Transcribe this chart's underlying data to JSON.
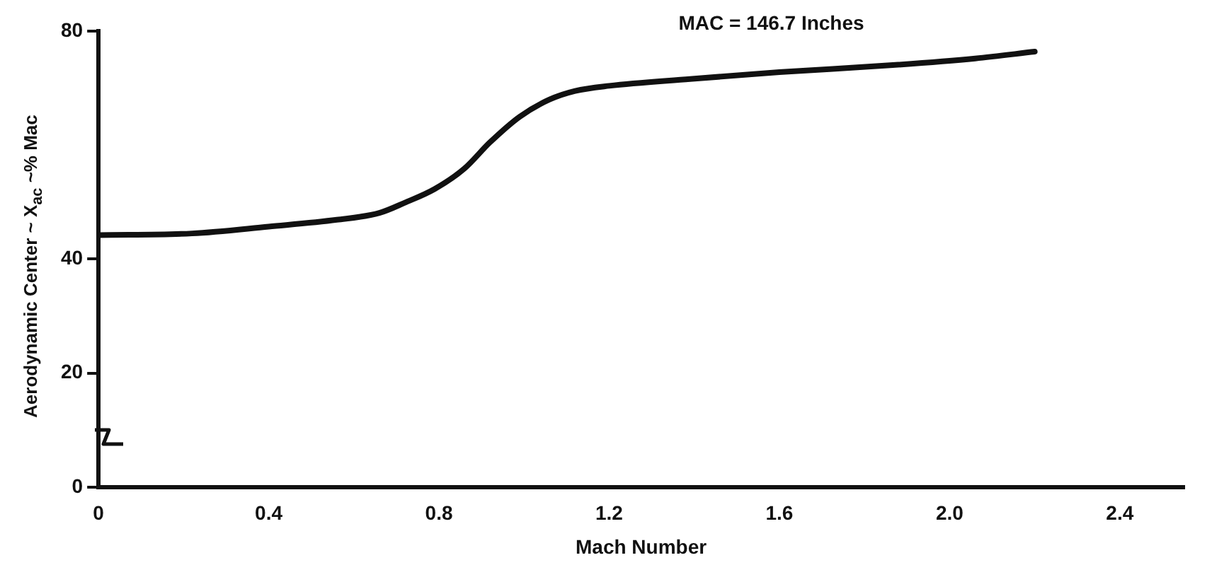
{
  "chart_data": {
    "type": "line",
    "xlabel": "Mach Number",
    "ylabel": "Aerodynamic Center ~ X$_{ac}$ ~% Mac",
    "annotations": [
      "MAC = 146.7 Inches"
    ],
    "xlim": [
      0,
      2.55
    ],
    "xticks": [
      0,
      0.4,
      0.8,
      1.2,
      1.6,
      {
        "value": 2,
        "label": "2.0"
      },
      2.4
    ],
    "ylim": [
      0,
      80
    ],
    "yticks": [
      0,
      20,
      40,
      80
    ],
    "grid": false,
    "marker": "none",
    "line_style": "solid",
    "series": [
      {
        "color": "#111111",
        "x": [
          0,
          0.22,
          0.4,
          0.56,
          0.66,
          0.72,
          0.79,
          0.86,
          0.92,
          0.99,
          1.06,
          1.12,
          1.2,
          1.39,
          1.6,
          1.86,
          2.06,
          2.2
        ],
        "values": [
          44.2,
          44.5,
          45.7,
          46.9,
          48.1,
          49.9,
          52.3,
          55.9,
          60.5,
          65,
          68,
          69.5,
          70.4,
          71.6,
          72.8,
          74,
          75.2,
          76.4
        ]
      }
    ]
  }
}
